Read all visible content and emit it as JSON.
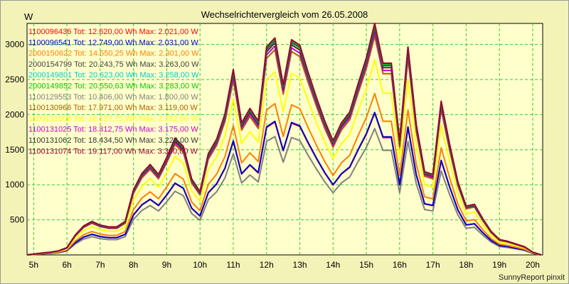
{
  "chart_data": {
    "type": "line",
    "title": "Wechselrichtervergleich vom 26.05.2008",
    "ylabel": "W",
    "xlabel": "",
    "ylim": [
      0,
      3300
    ],
    "xlim": [
      4.8,
      20.3
    ],
    "grid": true,
    "legend_position": "top-left",
    "yticks": [
      500,
      1000,
      1500,
      2000,
      2500,
      3000
    ],
    "xticks": [
      {
        "value": 5,
        "label": "5h"
      },
      {
        "value": 6,
        "label": "6h"
      },
      {
        "value": 7,
        "label": "7h"
      },
      {
        "value": 8,
        "label": "8h"
      },
      {
        "value": 9,
        "label": "9h"
      },
      {
        "value": 10,
        "label": "10h"
      },
      {
        "value": 11,
        "label": "11h"
      },
      {
        "value": 12,
        "label": "12h"
      },
      {
        "value": 13,
        "label": "13h"
      },
      {
        "value": 14,
        "label": "14h"
      },
      {
        "value": 15,
        "label": "15h"
      },
      {
        "value": 16,
        "label": "16h"
      },
      {
        "value": 17,
        "label": "17h"
      },
      {
        "value": 18,
        "label": "18h"
      },
      {
        "value": 19,
        "label": "19h"
      },
      {
        "value": 20,
        "label": "20h"
      }
    ],
    "x": [
      4.8,
      5.25,
      5.5,
      5.75,
      6.0,
      6.25,
      6.5,
      6.75,
      7.0,
      7.25,
      7.5,
      7.75,
      8.0,
      8.25,
      8.5,
      8.75,
      9.0,
      9.25,
      9.5,
      9.75,
      10.0,
      10.25,
      10.5,
      10.75,
      11.0,
      11.25,
      11.5,
      11.75,
      12.0,
      12.25,
      12.5,
      12.75,
      13.0,
      13.25,
      13.5,
      13.75,
      14.0,
      14.25,
      14.5,
      14.75,
      15.0,
      15.25,
      15.5,
      15.75,
      16.0,
      16.25,
      16.5,
      16.75,
      17.0,
      17.25,
      17.5,
      17.75,
      18.0,
      18.25,
      18.5,
      18.75,
      19.0,
      19.25,
      19.5,
      19.75,
      20.0,
      20.25
    ],
    "reference_profile": [
      0,
      20,
      30,
      45,
      80,
      220,
      320,
      370,
      330,
      310,
      310,
      370,
      720,
      900,
      1000,
      890,
      1080,
      1290,
      1200,
      840,
      700,
      1120,
      1280,
      1560,
      2050,
      1460,
      1620,
      1480,
      2300,
      2400,
      1880,
      2380,
      2320,
      2020,
      1740,
      1480,
      1260,
      1460,
      1580,
      1890,
      2180,
      2560,
      2120,
      2120,
      1260,
      2300,
      1440,
      920,
      890,
      1700,
      1230,
      810,
      540,
      560,
      400,
      260,
      170,
      150,
      120,
      90,
      30,
      0
    ],
    "reference_max": 2560,
    "series": [
      {
        "name": "1100096436",
        "label": "1100096436 Tot: 12.620,00 Wh Max: 2.021,00 W",
        "color": "#ff0000",
        "max": 2021
      },
      {
        "name": "1100096541",
        "label": "1100096541 Tot: 12.749,00 Wh Max: 2.031,00 W",
        "color": "#0000cc",
        "max": 2031
      },
      {
        "name": "2000150622",
        "label": "2000150622 Tot: 14.550,25 Wh Max: 2.301,00 W",
        "color": "#ff8000",
        "max": 2301
      },
      {
        "name": "2000154799",
        "label": "2000154799 Tot: 20.243,75 Wh Max: 3.263,00 W",
        "color": "#404040",
        "max": 3263
      },
      {
        "name": "2000149801",
        "label": "2000149801 Tot: 20.623,00 Wh Max: 3.258,00 W",
        "color": "#00cccc",
        "max": 3258
      },
      {
        "name": "2000149852",
        "label": "2000149852 Tot: 20.550,63 Wh Max: 3.283,00 W",
        "color": "#00cc00",
        "max": 3283
      },
      {
        "name": "1100129553",
        "label": "1100129553 Tot: 10.406,00 Wh Max: 1.800,00 W",
        "color": "#808080",
        "max": 1800
      },
      {
        "name": "1100130966",
        "label": "1100130966 Tot: 17.971,00 Wh Max: 3.119,00 W",
        "color": "#b06000",
        "max": 3119
      },
      {
        "name": "1100131008",
        "label": "1100131008 Tot: 16.137,75 Wh Max: 2.782,00 W",
        "color": "#ffff00",
        "max": 2782
      },
      {
        "name": "1100131025",
        "label": "1100131025 Tot: 18.312,75 Wh Max: 3.175,00 W",
        "color": "#cc00cc",
        "max": 3175
      },
      {
        "name": "1100131062",
        "label": "1100131062 Tot: 18.434,50 Wh Max: 3.223,00 W",
        "color": "#333333",
        "max": 3223
      },
      {
        "name": "1100131074",
        "label": "1100131074 Tot: 19.117,00 Wh Max: 3.300,00 W",
        "color": "#990033",
        "max": 3300
      }
    ]
  },
  "footer_text": "SunnyReport pinxit"
}
